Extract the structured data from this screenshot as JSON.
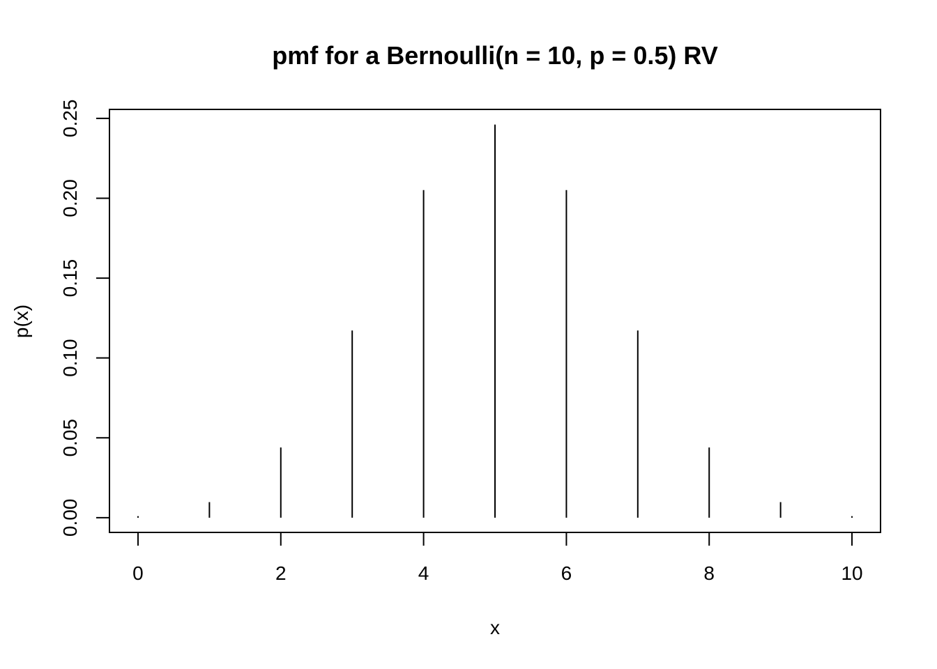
{
  "chart_data": {
    "type": "bar",
    "title": "pmf for a Bernoulli(n = 10, p = 0.5) RV",
    "xlabel": "x",
    "ylabel": "p(x)",
    "x": [
      0,
      1,
      2,
      3,
      4,
      5,
      6,
      7,
      8,
      9,
      10
    ],
    "values": [
      0.000977,
      0.009766,
      0.043945,
      0.117188,
      0.205078,
      0.246094,
      0.205078,
      0.117188,
      0.043945,
      0.009766,
      0.000977
    ],
    "xlim": [
      -0.4,
      10.4
    ],
    "ylim": [
      -0.0092,
      0.2556
    ],
    "x_ticks": [
      0,
      2,
      4,
      6,
      8,
      10
    ],
    "x_tick_labels": [
      "0",
      "2",
      "4",
      "6",
      "8",
      "10"
    ],
    "y_ticks": [
      0,
      0.05,
      0.1,
      0.15,
      0.2,
      0.25
    ],
    "y_tick_labels": [
      "0.00",
      "0.05",
      "0.10",
      "0.15",
      "0.20",
      "0.25"
    ],
    "grid": false,
    "legend": "none",
    "color": "#000000"
  }
}
